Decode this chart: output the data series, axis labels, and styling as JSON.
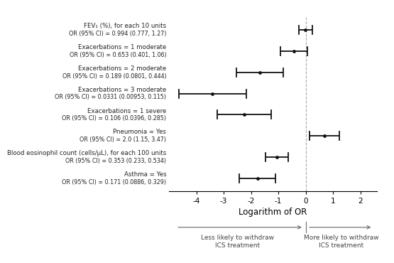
{
  "variables": [
    {
      "label1": "FEV₁ (%), for each 10 units",
      "label2": "OR (95% CI) = 0.994 (0.777, 1.27)",
      "log_or": -0.00602,
      "log_ci_lo": -0.25203,
      "log_ci_hi": 0.23902
    },
    {
      "label1": "Exacerbations = 1 moderate",
      "label2": "OR (95% CI) = 0.653 (0.401, 1.06)",
      "log_or": -0.42604,
      "log_ci_lo": -0.91358,
      "log_ci_hi": 0.05827
    },
    {
      "label1": "Exacerbations = 2 moderate",
      "label2": "OR (95% CI) = 0.189 (0.0801, 0.444)",
      "log_or": -1.66571,
      "log_ci_lo": -2.52466,
      "log_ci_hi": -0.81199
    },
    {
      "label1": "Exacerbations = 3 moderate",
      "label2": "OR (95% CI) = 0.0331 (0.00953, 0.115)",
      "log_or": -3.40795,
      "log_ci_lo": -4.65172,
      "log_ci_hi": -2.16332
    },
    {
      "label1": "Exacerbations = 1 severe",
      "label2": "OR (95% CI) = 0.106 (0.0396, 0.285)",
      "log_or": -2.24456,
      "log_ci_lo": -3.22836,
      "log_ci_hi": -1.25488
    },
    {
      "label1": "Pneumonia = Yes",
      "label2": "OR (95% CI) = 2.0 (1.15, 3.47)",
      "log_or": 0.69315,
      "log_ci_lo": 0.13976,
      "log_ci_hi": 1.24415
    },
    {
      "label1": "Blood eosinophil count (cells/μL), for each 100 units",
      "label2": "OR (95% CI) = 0.353 (0.233, 0.534)",
      "log_or": -1.04082,
      "log_ci_lo": -1.456,
      "log_ci_hi": -0.62749
    },
    {
      "label1": "Asthma = Yes",
      "label2": "OR (95% CI) = 0.171 (0.0886, 0.329)",
      "log_or": -1.76473,
      "log_ci_lo": -2.42397,
      "log_ci_hi": -1.1109
    }
  ],
  "xlim": [
    -5.0,
    2.6
  ],
  "xticks": [
    -4,
    -3,
    -2,
    -1,
    0,
    1,
    2
  ],
  "xlabel": "Logarithm of OR",
  "vline_x": 0,
  "fig_bg": "#ffffff",
  "text_color": "#222222",
  "line_color": "#111111",
  "vline_color": "#aaaaaa",
  "marker_color": "#111111",
  "marker_size": 3.5,
  "label_fontsize": 6.2,
  "label2_fontsize": 5.8,
  "axis_fontsize": 7.5,
  "xlabel_fontsize": 8.5,
  "arrow_label_left": "Less likely to withdraw\nICS treatment",
  "arrow_label_right": "More likely to withdraw\nICS treatment",
  "arrow_fontsize": 6.5
}
